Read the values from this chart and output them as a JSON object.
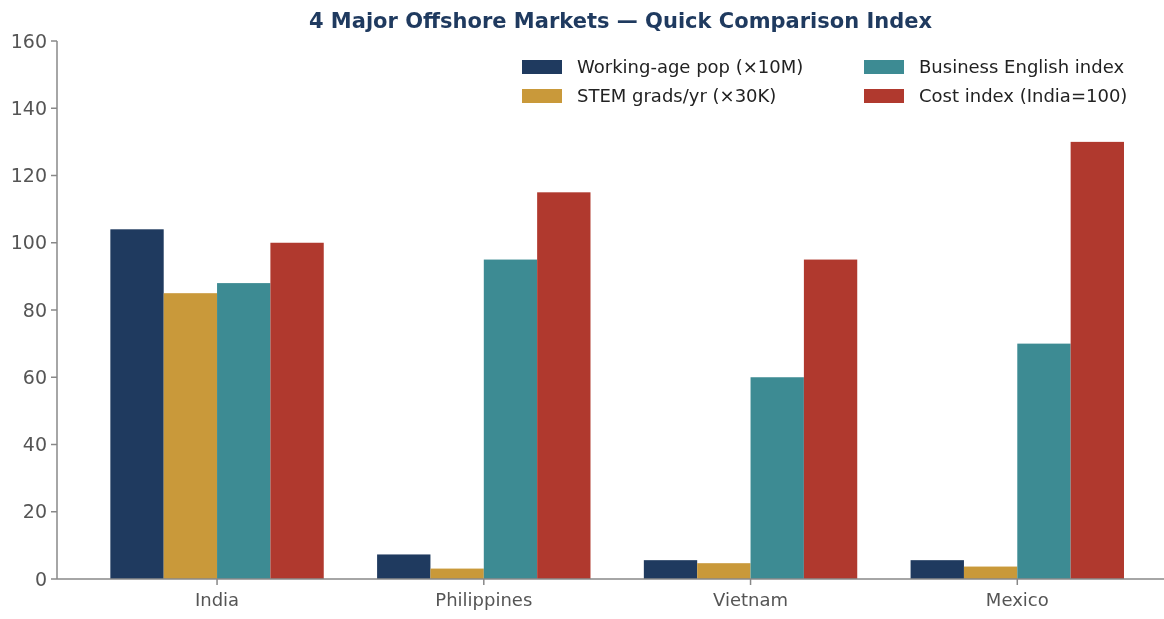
{
  "chart_data": {
    "type": "bar",
    "title": "4 Major Offshore Markets — Quick Comparison Index",
    "categories": [
      "India",
      "Philippines",
      "Vietnam",
      "Mexico"
    ],
    "series": [
      {
        "name": "Working-age pop (×10M)",
        "color": "#1f3a5f",
        "values": [
          104,
          7.3,
          5.6,
          5.6
        ]
      },
      {
        "name": "STEM grads/yr (×30K)",
        "color": "#c9993a",
        "values": [
          85,
          3.1,
          4.7,
          3.7
        ]
      },
      {
        "name": "Business English index",
        "color": "#3d8b93",
        "values": [
          88,
          95,
          60,
          70
        ]
      },
      {
        "name": "Cost index (India=100)",
        "color": "#b0392e",
        "values": [
          100,
          115,
          95,
          130
        ]
      }
    ],
    "ylim": [
      0,
      160
    ],
    "yticks": [
      0,
      20,
      40,
      60,
      80,
      100,
      120,
      140,
      160
    ],
    "grid": false,
    "legend": "top right"
  }
}
